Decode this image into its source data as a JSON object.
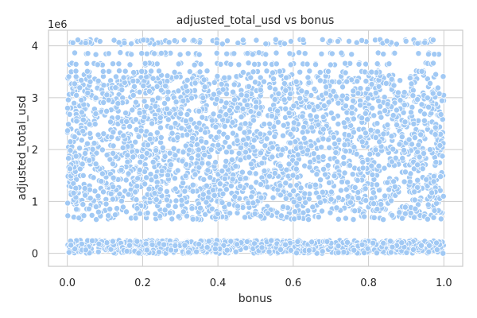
{
  "chart_data": {
    "type": "scatter",
    "title": "adjusted_total_usd vs bonus",
    "xlabel": "bonus",
    "ylabel": "adjusted_total_usd",
    "y_offset_label": "1e6",
    "y_scale_factor": 1000000,
    "xlim": [
      -0.05,
      1.05
    ],
    "ylim": [
      -250000,
      4300000
    ],
    "x_ticks": [
      0.0,
      0.2,
      0.4,
      0.6,
      0.8,
      1.0
    ],
    "x_tick_labels": [
      "0.0",
      "0.2",
      "0.4",
      "0.6",
      "0.8",
      "1.0"
    ],
    "y_ticks": [
      0,
      1000000,
      2000000,
      3000000,
      4000000
    ],
    "y_tick_labels": [
      "0",
      "1",
      "2",
      "3",
      "4"
    ],
    "grid": true,
    "series": [
      {
        "color": "#a1c9f4",
        "bands": [
          {
            "x_range": [
              0.0,
              1.0
            ],
            "y_range": [
              0,
              250000
            ],
            "density": "high"
          },
          {
            "x_range": [
              0.0,
              1.0
            ],
            "y_range": [
              650000,
              3450000
            ],
            "density": "high"
          },
          {
            "x_range": [
              0.0,
              1.0
            ],
            "y_range": [
              3450000,
              4100000
            ],
            "density": "sparse"
          }
        ]
      }
    ]
  }
}
